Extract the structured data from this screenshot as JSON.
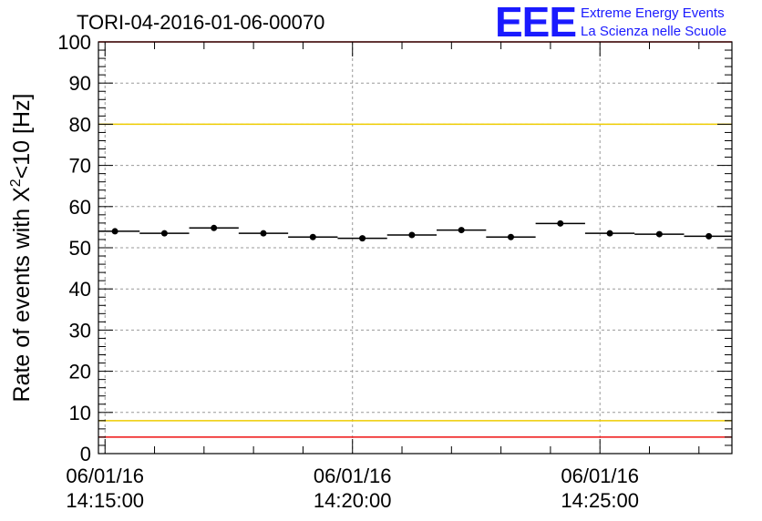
{
  "header": {
    "title": "TORI-04-2016-01-06-00070",
    "logo_text": "EEE",
    "logo_line1": "Extreme Energy Events",
    "logo_line2": "La Scienza nelle Scuole"
  },
  "chart_data": {
    "type": "scatter",
    "title": "TORI-04-2016-01-06-00070",
    "ylabel": "Rate of events with X²<10 [Hz]",
    "ylabel_main": "Rate of events with X",
    "ylabel_sup": "2",
    "ylabel_tail": "<10 [Hz]",
    "ylim": [
      0,
      100
    ],
    "yticks": [
      0,
      10,
      20,
      30,
      40,
      50,
      60,
      70,
      80,
      90,
      100
    ],
    "xlim": [
      "2016-01-06 14:14:52",
      "2016-01-06 14:27:40"
    ],
    "xticks": [
      {
        "t": "2016-01-06 14:15:00",
        "date": "06/01/16",
        "time": "14:15:00"
      },
      {
        "t": "2016-01-06 14:20:00",
        "date": "06/01/16",
        "time": "14:20:00"
      },
      {
        "t": "2016-01-06 14:25:00",
        "date": "06/01/16",
        "time": "14:25:00"
      }
    ],
    "grid": true,
    "bin_width_s": 60,
    "points": [
      {
        "x": "2016-01-06 14:15:12",
        "y": 54.0
      },
      {
        "x": "2016-01-06 14:16:12",
        "y": 53.5
      },
      {
        "x": "2016-01-06 14:17:12",
        "y": 54.8
      },
      {
        "x": "2016-01-06 14:18:12",
        "y": 53.5
      },
      {
        "x": "2016-01-06 14:19:12",
        "y": 52.6
      },
      {
        "x": "2016-01-06 14:20:12",
        "y": 52.3
      },
      {
        "x": "2016-01-06 14:21:12",
        "y": 53.1
      },
      {
        "x": "2016-01-06 14:22:12",
        "y": 54.3
      },
      {
        "x": "2016-01-06 14:23:12",
        "y": 52.6
      },
      {
        "x": "2016-01-06 14:24:12",
        "y": 55.9
      },
      {
        "x": "2016-01-06 14:25:12",
        "y": 53.5
      },
      {
        "x": "2016-01-06 14:26:12",
        "y": 53.3
      },
      {
        "x": "2016-01-06 14:27:12",
        "y": 52.8
      }
    ],
    "reference_lines": [
      {
        "y": 100,
        "color": "#ee1111"
      },
      {
        "y": 80,
        "color": "#eecc00"
      },
      {
        "y": 8,
        "color": "#eecc00"
      },
      {
        "y": 4,
        "color": "#ee1111"
      }
    ],
    "colors": {
      "points": "#000000",
      "grid": "#999999",
      "logo": "#1a1aff"
    }
  }
}
